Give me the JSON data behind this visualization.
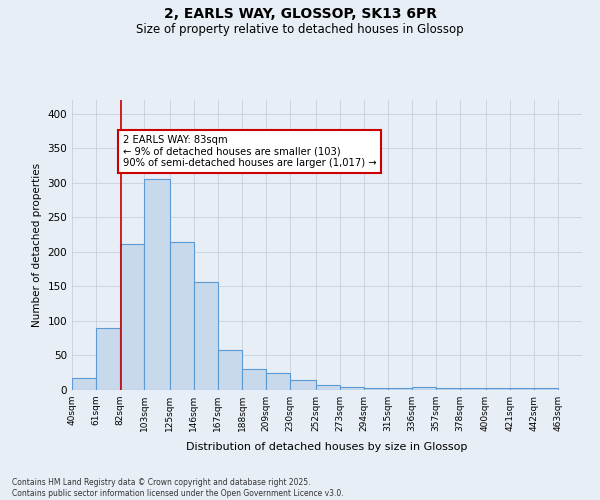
{
  "title_line1": "2, EARLS WAY, GLOSSOP, SK13 6PR",
  "title_line2": "Size of property relative to detached houses in Glossop",
  "xlabel": "Distribution of detached houses by size in Glossop",
  "ylabel": "Number of detached properties",
  "footnote": "Contains HM Land Registry data © Crown copyright and database right 2025.\nContains public sector information licensed under the Open Government Licence v3.0.",
  "bar_left_edges": [
    40,
    61,
    82,
    103,
    125,
    146,
    167,
    188,
    209,
    230,
    252,
    273,
    294,
    315,
    336,
    357,
    378,
    400,
    421,
    442
  ],
  "bar_widths": [
    21,
    21,
    21,
    22,
    21,
    21,
    21,
    21,
    21,
    22,
    21,
    21,
    21,
    21,
    21,
    21,
    22,
    21,
    21,
    21
  ],
  "bar_heights": [
    18,
    90,
    212,
    305,
    215,
    157,
    58,
    30,
    25,
    15,
    7,
    4,
    3,
    3,
    4,
    3,
    3,
    3,
    3,
    3
  ],
  "bar_color": "#c8d9ec",
  "bar_edge_color": "#5b9bd5",
  "grid_color": "#c8d0de",
  "background_color": "#e8eef5",
  "vline_x": 83,
  "vline_color": "#cc0000",
  "annotation_text": "2 EARLS WAY: 83sqm\n← 9% of detached houses are smaller (103)\n90% of semi-detached houses are larger (1,017) →",
  "annotation_box_color": "#ffffff",
  "annotation_box_edge": "#cc0000",
  "ylim": [
    0,
    420
  ],
  "yticks": [
    0,
    50,
    100,
    150,
    200,
    250,
    300,
    350,
    400
  ],
  "tick_labels": [
    "40sqm",
    "61sqm",
    "82sqm",
    "103sqm",
    "125sqm",
    "146sqm",
    "167sqm",
    "188sqm",
    "209sqm",
    "230sqm",
    "252sqm",
    "273sqm",
    "294sqm",
    "315sqm",
    "336sqm",
    "357sqm",
    "378sqm",
    "400sqm",
    "421sqm",
    "442sqm",
    "463sqm"
  ],
  "xlim_left": 40,
  "xlim_right": 484
}
